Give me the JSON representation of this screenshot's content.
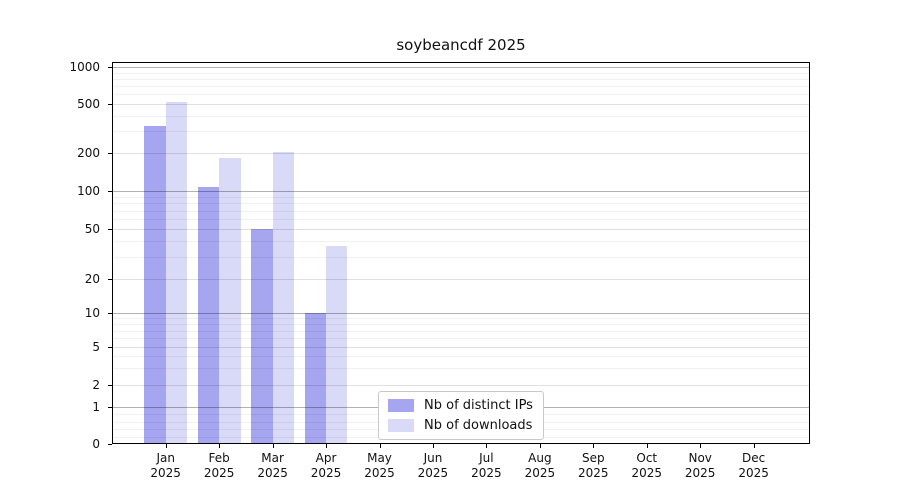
{
  "title": "soybeancdf 2025",
  "chart_data": {
    "type": "bar",
    "title": "soybeancdf 2025",
    "categories": [
      "Jan",
      "Feb",
      "Mar",
      "Apr",
      "May",
      "Jun",
      "Jul",
      "Aug",
      "Sep",
      "Oct",
      "Nov",
      "Dec"
    ],
    "category_year": "2025",
    "series": [
      {
        "name": "Nb of distinct IPs",
        "color": "#a5a5f0",
        "values": [
          330,
          108,
          50,
          10,
          0,
          0,
          0,
          0,
          0,
          0,
          0,
          0
        ]
      },
      {
        "name": "Nb of downloads",
        "color": "#d9d9f8",
        "values": [
          515,
          183,
          204,
          37,
          0,
          0,
          0,
          0,
          0,
          0,
          0,
          0
        ]
      }
    ],
    "yticks": [
      0,
      1,
      2,
      5,
      10,
      20,
      50,
      100,
      200,
      500,
      1000
    ],
    "xlabel": "",
    "ylabel": "",
    "scale": "symlog",
    "grid": true,
    "legend_position": "lower-center",
    "axis_color": "#000000",
    "grid_major_color": "#b3b3b3",
    "grid_mid_color": "#e0e0e0",
    "grid_minor_color": "#f0f0f0"
  }
}
